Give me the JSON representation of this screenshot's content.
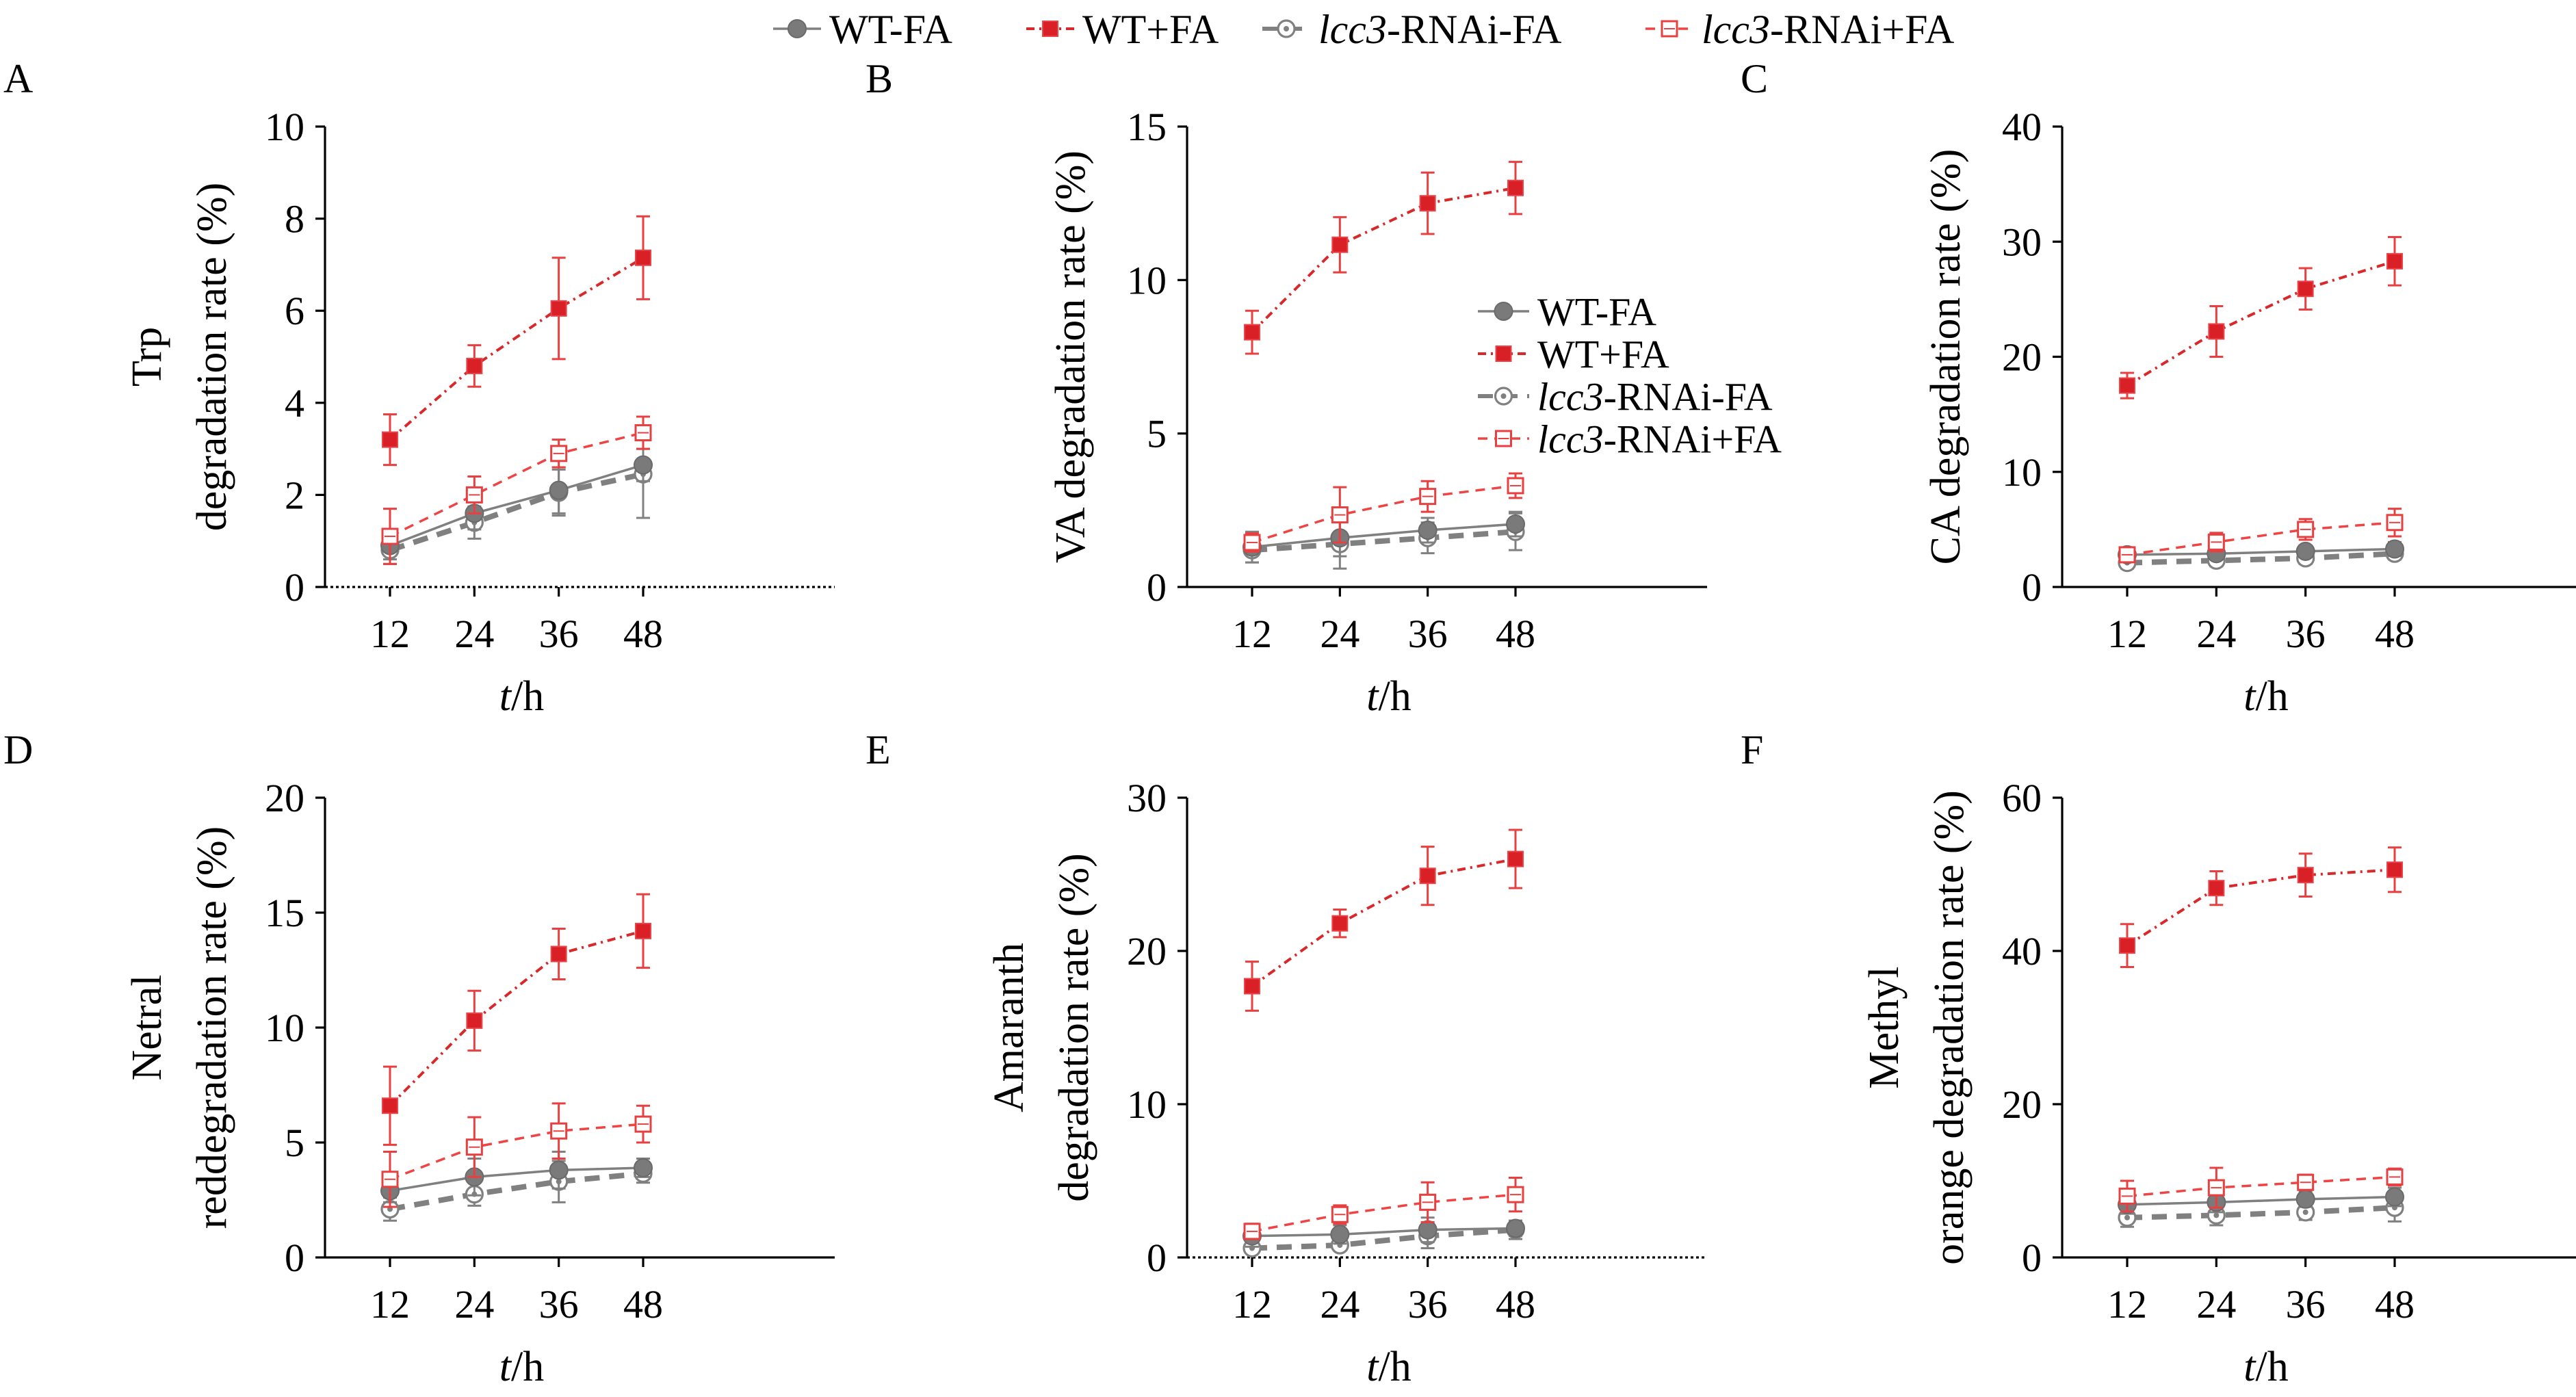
{
  "legend": [
    {
      "prefix": "WT",
      "italic": "",
      "suffix": "-FA",
      "color": "#808080",
      "marker": "filled-circle",
      "dash": "solid"
    },
    {
      "prefix": "WT",
      "italic": "",
      "suffix": "+FA",
      "color": "#e8302f",
      "marker": "filled-square",
      "dash": "dashdot"
    },
    {
      "prefix": "",
      "italic": "lcc3",
      "suffix": "-RNAi-FA",
      "color": "#808080",
      "marker": "open-circle",
      "dash": "dashed"
    },
    {
      "prefix": "",
      "italic": "lcc3",
      "suffix": "-RNAi+FA",
      "color": "#e8302f",
      "marker": "open-square",
      "dash": "dashed-light"
    }
  ],
  "chart_data": [
    {
      "panel": "A",
      "type": "line",
      "x": [
        12,
        24,
        36,
        48
      ],
      "xticks": [
        "12",
        "24",
        "36",
        "48"
      ],
      "xlabel_italic": "t",
      "xlabel_rest": "/h",
      "ylabel_lines": [
        "Trp",
        "degradation rate (%)"
      ],
      "ylim": [
        0,
        10
      ],
      "yticks": [
        0,
        2,
        4,
        6,
        8,
        10
      ],
      "ytick_labels": [
        "0",
        "2",
        "4",
        "6",
        "8",
        "10"
      ],
      "baseline": "dotted",
      "series": [
        {
          "name": "WT-FA",
          "values": [
            0.9,
            1.6,
            2.1,
            2.65
          ],
          "err": [
            0.3,
            0.35,
            0.5,
            0.35
          ]
        },
        {
          "name": "WT+FA",
          "values": [
            3.2,
            4.8,
            6.05,
            7.15
          ],
          "err": [
            0.55,
            0.45,
            1.1,
            0.9
          ]
        },
        {
          "name": "lcc3-RNAi-FA",
          "values": [
            0.8,
            1.4,
            2.05,
            2.45
          ],
          "err": [
            0.3,
            0.35,
            0.5,
            0.95
          ]
        },
        {
          "name": "lcc3-RNAi+FA",
          "values": [
            1.1,
            2.0,
            2.9,
            3.35
          ],
          "err": [
            0.6,
            0.4,
            0.3,
            0.35
          ]
        }
      ]
    },
    {
      "panel": "B",
      "type": "line",
      "x": [
        12,
        24,
        36,
        48
      ],
      "xticks": [
        "12",
        "24",
        "36",
        "48"
      ],
      "xlabel_italic": "t",
      "xlabel_rest": "/h",
      "ylabel_lines": [
        "VA degradation rate (%)"
      ],
      "ylim": [
        0,
        15
      ],
      "yticks": [
        0,
        5,
        10,
        15
      ],
      "ytick_labels": [
        "0",
        "5",
        "10",
        "15"
      ],
      "baseline": "solid",
      "series": [
        {
          "name": "WT-FA",
          "values": [
            1.3,
            1.6,
            1.85,
            2.05
          ],
          "err": [
            0.5,
            0.6,
            0.4,
            0.4
          ]
        },
        {
          "name": "WT+FA",
          "values": [
            8.3,
            11.15,
            12.5,
            13.0
          ],
          "err": [
            0.7,
            0.9,
            1.0,
            0.85
          ]
        },
        {
          "name": "lcc3-RNAi-FA",
          "values": [
            1.2,
            1.4,
            1.6,
            1.8
          ],
          "err": [
            0.4,
            0.8,
            0.5,
            0.6
          ]
        },
        {
          "name": "lcc3-RNAi+FA",
          "values": [
            1.45,
            2.35,
            2.95,
            3.3
          ],
          "err": [
            0.3,
            0.9,
            0.5,
            0.4
          ]
        }
      ],
      "inner_legend": true
    },
    {
      "panel": "C",
      "type": "line",
      "x": [
        12,
        24,
        36,
        48
      ],
      "xticks": [
        "12",
        "24",
        "36",
        "48"
      ],
      "xlabel_italic": "t",
      "xlabel_rest": "/h",
      "ylabel_lines": [
        "CA degradation rate (%)"
      ],
      "ylim": [
        0,
        40
      ],
      "yticks": [
        0,
        10,
        20,
        30,
        40
      ],
      "ytick_labels": [
        "0",
        "10",
        "20",
        "30",
        "40"
      ],
      "baseline": "solid",
      "series": [
        {
          "name": "WT-FA",
          "values": [
            2.8,
            2.9,
            3.1,
            3.3
          ],
          "err": [
            0.6,
            0.5,
            0.5,
            0.6
          ]
        },
        {
          "name": "WT+FA",
          "values": [
            17.5,
            22.2,
            25.9,
            28.3
          ],
          "err": [
            1.1,
            2.2,
            1.8,
            2.1
          ]
        },
        {
          "name": "lcc3-RNAi-FA",
          "values": [
            2.1,
            2.3,
            2.5,
            2.9
          ],
          "err": [
            0.5,
            0.5,
            0.5,
            0.5
          ]
        },
        {
          "name": "lcc3-RNAi+FA",
          "values": [
            2.8,
            3.9,
            5.0,
            5.6
          ],
          "err": [
            0.5,
            0.8,
            0.9,
            1.2
          ]
        }
      ]
    },
    {
      "panel": "D",
      "type": "line",
      "x": [
        12,
        24,
        36,
        48
      ],
      "xticks": [
        "12",
        "24",
        "36",
        "48"
      ],
      "xlabel_italic": "t",
      "xlabel_rest": "/h",
      "ylabel_lines": [
        "Netral",
        "reddegradation rate (%)"
      ],
      "ylim": [
        0,
        20
      ],
      "yticks": [
        0,
        5,
        10,
        15,
        20
      ],
      "ytick_labels": [
        "0",
        "5",
        "10",
        "15",
        "20"
      ],
      "baseline": "solid",
      "series": [
        {
          "name": "WT-FA",
          "values": [
            2.9,
            3.5,
            3.8,
            3.9
          ],
          "err": [
            0.5,
            0.8,
            0.8,
            0.4
          ]
        },
        {
          "name": "WT+FA",
          "values": [
            6.6,
            10.3,
            13.2,
            14.2
          ],
          "err": [
            1.7,
            1.3,
            1.1,
            1.6
          ]
        },
        {
          "name": "lcc3-RNAi-FA",
          "values": [
            2.1,
            2.75,
            3.3,
            3.65
          ],
          "err": [
            0.5,
            0.5,
            0.9,
            0.4
          ]
        },
        {
          "name": "lcc3-RNAi+FA",
          "values": [
            3.4,
            4.8,
            5.5,
            5.8
          ],
          "err": [
            1.2,
            1.3,
            1.2,
            0.8
          ]
        }
      ]
    },
    {
      "panel": "E",
      "type": "line",
      "x": [
        12,
        24,
        36,
        48
      ],
      "xticks": [
        "12",
        "24",
        "36",
        "48"
      ],
      "xlabel_italic": "t",
      "xlabel_rest": "/h",
      "ylabel_lines": [
        "Amaranth",
        "degradation rate (%)"
      ],
      "ylim": [
        0,
        30
      ],
      "yticks": [
        0,
        10,
        20,
        30
      ],
      "ytick_labels": [
        "0",
        "10",
        "20",
        "30"
      ],
      "baseline": "dotted",
      "series": [
        {
          "name": "WT-FA",
          "values": [
            1.4,
            1.5,
            1.8,
            1.9
          ],
          "err": [
            0.7,
            0.6,
            0.8,
            0.5
          ]
        },
        {
          "name": "WT+FA",
          "values": [
            17.7,
            21.8,
            24.9,
            26.0
          ],
          "err": [
            1.6,
            0.9,
            1.9,
            1.9
          ]
        },
        {
          "name": "lcc3-RNAi-FA",
          "values": [
            0.6,
            0.8,
            1.4,
            1.8
          ],
          "err": [
            0.3,
            0.3,
            0.8,
            0.6
          ]
        },
        {
          "name": "lcc3-RNAi+FA",
          "values": [
            1.7,
            2.8,
            3.6,
            4.1
          ],
          "err": [
            0.5,
            0.6,
            1.3,
            1.1
          ]
        }
      ]
    },
    {
      "panel": "F",
      "type": "line",
      "x": [
        12,
        24,
        36,
        48
      ],
      "xticks": [
        "12",
        "24",
        "36",
        "48"
      ],
      "xlabel_italic": "t",
      "xlabel_rest": "/h",
      "ylabel_lines": [
        "Methyl",
        "orange degradation rate (%)"
      ],
      "ylim": [
        0,
        60
      ],
      "yticks": [
        0,
        20,
        40,
        60
      ],
      "ytick_labels": [
        "0",
        "20",
        "40",
        "60"
      ],
      "baseline": "solid",
      "series": [
        {
          "name": "WT-FA",
          "values": [
            6.9,
            7.2,
            7.6,
            7.9
          ],
          "err": [
            1.2,
            1.3,
            1.0,
            1.2
          ]
        },
        {
          "name": "WT+FA",
          "values": [
            40.7,
            48.2,
            49.9,
            50.6
          ],
          "err": [
            2.8,
            2.2,
            2.8,
            2.9
          ]
        },
        {
          "name": "lcc3-RNAi-FA",
          "values": [
            5.2,
            5.5,
            5.9,
            6.5
          ],
          "err": [
            1.2,
            1.3,
            1.0,
            1.8
          ]
        },
        {
          "name": "lcc3-RNAi+FA",
          "values": [
            8.0,
            9.1,
            9.8,
            10.5
          ],
          "err": [
            2.0,
            2.6,
            1.0,
            1.1
          ]
        }
      ]
    }
  ]
}
